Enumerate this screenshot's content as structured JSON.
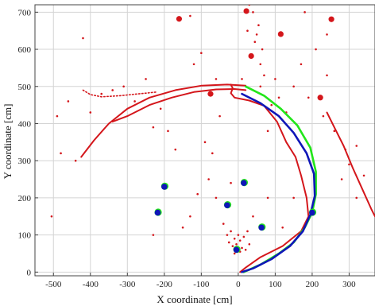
{
  "chart_data": {
    "type": "scatter",
    "title": "",
    "xlabel": "X coordinate [cm]",
    "ylabel": "Y coordinate [cm]",
    "xlim": [
      -550,
      370
    ],
    "ylim": [
      -10,
      720
    ],
    "x_ticks": [
      -500,
      -400,
      -300,
      -200,
      -100,
      0,
      100,
      200,
      300
    ],
    "y_ticks": [
      0,
      100,
      200,
      300,
      400,
      500,
      600,
      700
    ],
    "grid": true,
    "colors": {
      "red": "#d4161b",
      "green": "#22e61a",
      "blue": "#0f16b8",
      "grid": "#d4d4d4"
    },
    "large_red_markers": [
      {
        "x": -160,
        "y": 682
      },
      {
        "x": 22,
        "y": 703
      },
      {
        "x": 115,
        "y": 641
      },
      {
        "x": 252,
        "y": 681
      },
      {
        "x": 35,
        "y": 582
      },
      {
        "x": 222,
        "y": 470
      },
      {
        "x": -75,
        "y": 480
      }
    ],
    "blue_markers": [
      {
        "x": -200,
        "y": 230
      },
      {
        "x": -218,
        "y": 160
      },
      {
        "x": 15,
        "y": 240
      },
      {
        "x": -30,
        "y": 180
      },
      {
        "x": 63,
        "y": 120
      },
      {
        "x": 200,
        "y": 160
      },
      {
        "x": -5,
        "y": 60
      }
    ],
    "scattered_red_points": [
      {
        "x": -505,
        "y": 150
      },
      {
        "x": -490,
        "y": 420
      },
      {
        "x": -480,
        "y": 320
      },
      {
        "x": -460,
        "y": 460
      },
      {
        "x": -440,
        "y": 300
      },
      {
        "x": -420,
        "y": 630
      },
      {
        "x": -400,
        "y": 430
      },
      {
        "x": -370,
        "y": 480
      },
      {
        "x": -340,
        "y": 490
      },
      {
        "x": -310,
        "y": 500
      },
      {
        "x": -280,
        "y": 460
      },
      {
        "x": -250,
        "y": 520
      },
      {
        "x": -230,
        "y": 390
      },
      {
        "x": -210,
        "y": 440
      },
      {
        "x": -190,
        "y": 380
      },
      {
        "x": -170,
        "y": 330
      },
      {
        "x": -150,
        "y": 120
      },
      {
        "x": -130,
        "y": 150
      },
      {
        "x": -120,
        "y": 560
      },
      {
        "x": -100,
        "y": 590
      },
      {
        "x": -90,
        "y": 350
      },
      {
        "x": -80,
        "y": 250
      },
      {
        "x": -70,
        "y": 320
      },
      {
        "x": -60,
        "y": 200
      },
      {
        "x": -50,
        "y": 420
      },
      {
        "x": -40,
        "y": 130
      },
      {
        "x": -30,
        "y": 100
      },
      {
        "x": -25,
        "y": 80
      },
      {
        "x": -20,
        "y": 110
      },
      {
        "x": -15,
        "y": 70
      },
      {
        "x": -10,
        "y": 90
      },
      {
        "x": -5,
        "y": 75
      },
      {
        "x": 0,
        "y": 100
      },
      {
        "x": 5,
        "y": 85
      },
      {
        "x": 10,
        "y": 65
      },
      {
        "x": 15,
        "y": 95
      },
      {
        "x": 20,
        "y": 60
      },
      {
        "x": 25,
        "y": 110
      },
      {
        "x": 30,
        "y": 75
      },
      {
        "x": 5,
        "y": 55
      },
      {
        "x": -10,
        "y": 50
      },
      {
        "x": 40,
        "y": 150
      },
      {
        "x": 45,
        "y": 620
      },
      {
        "x": 50,
        "y": 640
      },
      {
        "x": 55,
        "y": 665
      },
      {
        "x": 60,
        "y": 560
      },
      {
        "x": 65,
        "y": 600
      },
      {
        "x": 70,
        "y": 530
      },
      {
        "x": 80,
        "y": 380
      },
      {
        "x": 90,
        "y": 450
      },
      {
        "x": 100,
        "y": 520
      },
      {
        "x": 110,
        "y": 470
      },
      {
        "x": 130,
        "y": 430
      },
      {
        "x": 150,
        "y": 500
      },
      {
        "x": 170,
        "y": 560
      },
      {
        "x": 190,
        "y": 470
      },
      {
        "x": 210,
        "y": 600
      },
      {
        "x": 230,
        "y": 420
      },
      {
        "x": 240,
        "y": 530
      },
      {
        "x": 260,
        "y": 380
      },
      {
        "x": 280,
        "y": 250
      },
      {
        "x": 290,
        "y": 330
      },
      {
        "x": 300,
        "y": 290
      },
      {
        "x": 320,
        "y": 340
      },
      {
        "x": 340,
        "y": 260
      },
      {
        "x": 320,
        "y": 200
      },
      {
        "x": -20,
        "y": 240
      },
      {
        "x": 80,
        "y": 200
      },
      {
        "x": 120,
        "y": 120
      },
      {
        "x": 150,
        "y": 200
      },
      {
        "x": -60,
        "y": 520
      },
      {
        "x": 10,
        "y": 520
      },
      {
        "x": 60,
        "y": 500
      },
      {
        "x": -230,
        "y": 100
      },
      {
        "x": -110,
        "y": 210
      },
      {
        "x": 30,
        "y": 720
      },
      {
        "x": 40,
        "y": 700
      },
      {
        "x": 25,
        "y": 650
      },
      {
        "x": -130,
        "y": 690
      },
      {
        "x": 180,
        "y": 700
      },
      {
        "x": 240,
        "y": 640
      }
    ],
    "series": [
      {
        "color_key": "red",
        "kind": "line",
        "points": [
          [
            -425,
            310
          ],
          [
            -390,
            355
          ],
          [
            -350,
            400
          ],
          [
            -300,
            440
          ],
          [
            -240,
            470
          ],
          [
            -170,
            490
          ],
          [
            -100,
            502
          ],
          [
            -30,
            505
          ],
          [
            20,
            502
          ]
        ]
      },
      {
        "color_key": "red",
        "kind": "line",
        "points": [
          [
            -340,
            405
          ],
          [
            -300,
            420
          ],
          [
            -240,
            450
          ],
          [
            -180,
            470
          ],
          [
            -120,
            485
          ],
          [
            -60,
            492
          ],
          [
            -10,
            493
          ],
          [
            20,
            490
          ]
        ]
      },
      {
        "color_key": "red",
        "kind": "dotted",
        "points": [
          [
            -420,
            490
          ],
          [
            -400,
            478
          ],
          [
            -370,
            472
          ],
          [
            -320,
            475
          ],
          [
            -270,
            480
          ],
          [
            -220,
            485
          ]
        ]
      },
      {
        "color_key": "red",
        "kind": "line",
        "points": [
          [
            -20,
            505
          ],
          [
            -15,
            495
          ],
          [
            -20,
            482
          ],
          [
            -10,
            470
          ],
          [
            30,
            462
          ],
          [
            70,
            448
          ],
          [
            105,
            405
          ],
          [
            130,
            350
          ],
          [
            155,
            310
          ],
          [
            170,
            260
          ],
          [
            185,
            200
          ],
          [
            190,
            150
          ],
          [
            170,
            110
          ],
          [
            120,
            70
          ],
          [
            60,
            40
          ],
          [
            20,
            12
          ],
          [
            5,
            0
          ]
        ]
      },
      {
        "color_key": "red",
        "kind": "line",
        "points": [
          [
            240,
            430
          ],
          [
            260,
            390
          ],
          [
            285,
            340
          ],
          [
            310,
            280
          ],
          [
            335,
            225
          ],
          [
            360,
            170
          ],
          [
            370,
            150
          ]
        ]
      },
      {
        "color_key": "green",
        "kind": "line",
        "points": [
          [
            20,
            500
          ],
          [
            70,
            475
          ],
          [
            115,
            440
          ],
          [
            160,
            395
          ],
          [
            195,
            335
          ],
          [
            210,
            270
          ],
          [
            210,
            210
          ],
          [
            200,
            160
          ],
          [
            180,
            120
          ],
          [
            150,
            80
          ],
          [
            110,
            50
          ],
          [
            60,
            20
          ],
          [
            15,
            0
          ]
        ]
      },
      {
        "color_key": "blue",
        "kind": "line",
        "points": [
          [
            10,
            480
          ],
          [
            60,
            455
          ],
          [
            110,
            420
          ],
          [
            150,
            375
          ],
          [
            185,
            320
          ],
          [
            205,
            265
          ],
          [
            207,
            205
          ],
          [
            195,
            155
          ],
          [
            175,
            110
          ],
          [
            140,
            70
          ],
          [
            90,
            35
          ],
          [
            40,
            10
          ],
          [
            10,
            0
          ]
        ]
      }
    ]
  }
}
